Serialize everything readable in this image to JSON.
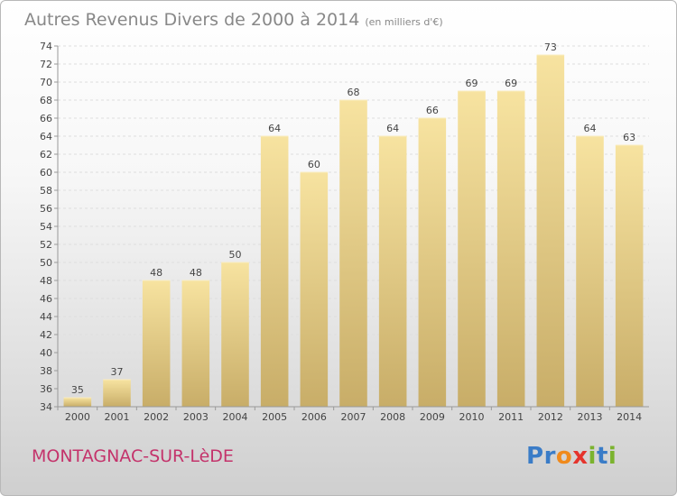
{
  "chart_title": "Autres Revenus Divers de 2000 à 2014",
  "chart_unit": "(en milliers d'€)",
  "commune": "MONTAGNAC-SUR-LèDE",
  "logo": {
    "text": "Proxiti",
    "letters": [
      {
        "ch": "P",
        "color": "#3a7cc7"
      },
      {
        "ch": "r",
        "color": "#3a7cc7"
      },
      {
        "ch": "o",
        "color": "#f08a1c"
      },
      {
        "ch": "x",
        "color": "#e5342c"
      },
      {
        "ch": "i",
        "color": "#7bb32e"
      },
      {
        "ch": "t",
        "color": "#3a7cc7"
      },
      {
        "ch": "i",
        "color": "#7bb32e"
      }
    ]
  },
  "colors": {
    "bar_top": "#f7e3a0",
    "bar_bottom": "#c8ad68",
    "title": "#888888",
    "commune": "#c4336b"
  },
  "chart_data": {
    "type": "bar",
    "categories": [
      "2000",
      "2001",
      "2002",
      "2003",
      "2004",
      "2005",
      "2006",
      "2007",
      "2008",
      "2009",
      "2010",
      "2011",
      "2012",
      "2013",
      "2014"
    ],
    "values": [
      35,
      37,
      48,
      48,
      50,
      64,
      60,
      68,
      64,
      66,
      69,
      69,
      73,
      64,
      63
    ],
    "ylim": [
      34,
      74
    ],
    "yticks": [
      34,
      36,
      38,
      40,
      42,
      44,
      46,
      48,
      50,
      52,
      54,
      56,
      58,
      60,
      62,
      64,
      66,
      68,
      70,
      72,
      74
    ],
    "grid": true
  }
}
